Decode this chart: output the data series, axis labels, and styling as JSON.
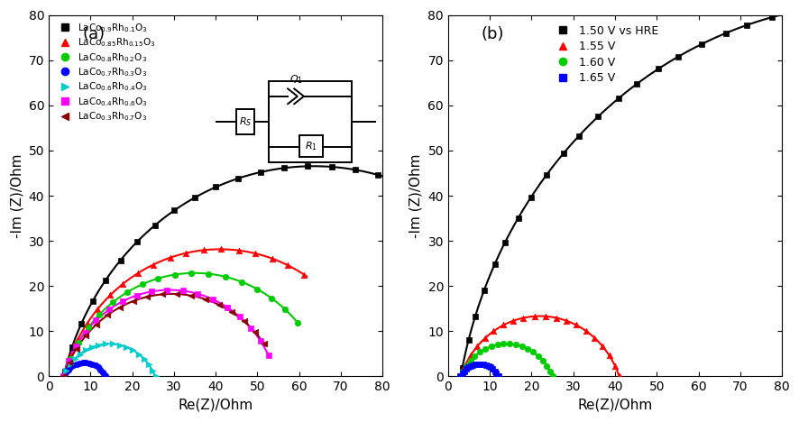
{
  "panel_a": {
    "title": "(a)",
    "xlabel": "Re(Z)/Ohm",
    "ylabel": "-Im (Z)/Ohm",
    "xlim": [
      0,
      80
    ],
    "ylim": [
      0,
      80
    ],
    "xticks": [
      0,
      10,
      20,
      30,
      40,
      50,
      60,
      70,
      80
    ],
    "yticks": [
      0,
      10,
      20,
      30,
      40,
      50,
      60,
      70,
      80
    ],
    "series": [
      {
        "label": "LaCo$_{0.9}$Rh$_{0.1}$O$_3$",
        "color": "#000000",
        "marker": "s",
        "Rs": 3.5,
        "R1": 120,
        "alpha": 0.84,
        "x_max": 80
      },
      {
        "label": "LaCo$_{0.85}$Rh$_{0.15}$O$_3$",
        "color": "#FF0000",
        "marker": "^",
        "Rs": 3.5,
        "R1": 75,
        "alpha": 0.82,
        "x_max": 62
      },
      {
        "label": "LaCo$_{0.8}$Rh$_{0.2}$O$_3$",
        "color": "#00CC00",
        "marker": "o",
        "Rs": 3.5,
        "R1": 63,
        "alpha": 0.8,
        "x_max": 60
      },
      {
        "label": "LaCo$_{0.7}$Rh$_{0.3}$O$_3$",
        "color": "#0000FF",
        "marker": "o",
        "Rs": 3.5,
        "R1": 10,
        "alpha": 0.7,
        "x_max": 15
      },
      {
        "label": "LaCo$_{0.6}$Rh$_{0.4}$O$_3$",
        "color": "#00CCCC",
        "marker": ">",
        "Rs": 3.5,
        "R1": 22,
        "alpha": 0.74,
        "x_max": 27
      },
      {
        "label": "LaCo$_{0.4}$Rh$_{0.6}$O$_3$",
        "color": "#FF00FF",
        "marker": "s",
        "Rs": 3.5,
        "R1": 51,
        "alpha": 0.82,
        "x_max": 53
      },
      {
        "label": "LaCo$_{0.3}$Rh$_{0.7}$O$_3$",
        "color": "#8B0000",
        "marker": "<",
        "Rs": 3.5,
        "R1": 52,
        "alpha": 0.78,
        "x_max": 52
      }
    ]
  },
  "panel_b": {
    "title": "(b)",
    "xlabel": "Re(Z)/Ohm",
    "ylabel": "-Im (Z)/Ohm",
    "xlim": [
      0,
      80
    ],
    "ylim": [
      0,
      80
    ],
    "xticks": [
      0,
      10,
      20,
      30,
      40,
      50,
      60,
      70,
      80
    ],
    "yticks": [
      0,
      10,
      20,
      30,
      40,
      50,
      60,
      70,
      80
    ],
    "series": [
      {
        "label": "1.50 V vs HRE",
        "color": "#000000",
        "marker": "s",
        "Rs": 3.0,
        "R1": 200,
        "alpha": 0.88,
        "x_max": 80
      },
      {
        "label": "1.55 V",
        "color": "#FF0000",
        "marker": "^",
        "Rs": 3.0,
        "R1": 38,
        "alpha": 0.78,
        "x_max": 46
      },
      {
        "label": "1.60 V",
        "color": "#00CC00",
        "marker": "o",
        "Rs": 3.0,
        "R1": 22,
        "alpha": 0.74,
        "x_max": 27
      },
      {
        "label": "1.65 V",
        "color": "#0000FF",
        "marker": "s",
        "Rs": 3.0,
        "R1": 9,
        "alpha": 0.7,
        "x_max": 14
      }
    ]
  }
}
